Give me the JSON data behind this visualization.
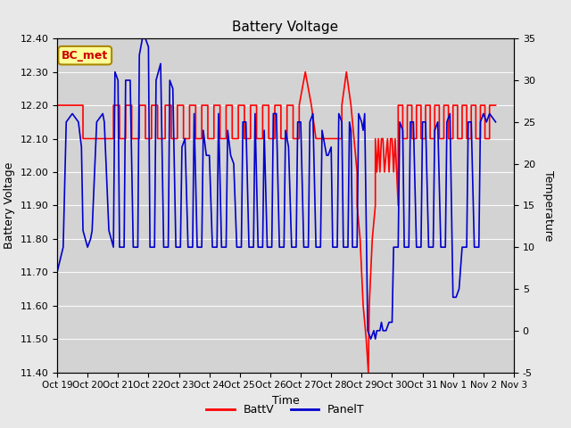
{
  "title": "Battery Voltage",
  "xlabel": "Time",
  "ylabel_left": "Battery Voltage",
  "ylabel_right": "Temperature",
  "ylim_left": [
    11.4,
    12.4
  ],
  "ylim_right": [
    -5,
    35
  ],
  "yticks_left": [
    11.4,
    11.5,
    11.6,
    11.7,
    11.8,
    11.9,
    12.0,
    12.1,
    12.2,
    12.3,
    12.4
  ],
  "yticks_right": [
    -5,
    0,
    5,
    10,
    15,
    20,
    25,
    30,
    35
  ],
  "xtick_labels": [
    "Oct 19",
    "Oct 20",
    "Oct 21",
    "Oct 22",
    "Oct 23",
    "Oct 24",
    "Oct 25",
    "Oct 26",
    "Oct 27",
    "Oct 28",
    "Oct 29",
    "Oct 30",
    "Oct 31",
    "Nov 1",
    "Nov 2",
    "Nov 3"
  ],
  "fig_bg": "#e8e8e8",
  "plot_bg": "#d3d3d3",
  "batt_color": "#ff0000",
  "panel_color": "#0000cc",
  "grid_color": "#ffffff",
  "annotation_text": "BC_met",
  "annotation_fg": "#cc0000",
  "annotation_bg": "#ffff99",
  "annotation_border": "#aa8800",
  "legend_batt": "BattV",
  "legend_panel": "PanelT",
  "batt_data": [
    [
      0.0,
      12.2
    ],
    [
      0.85,
      12.2
    ],
    [
      0.85,
      12.1
    ],
    [
      1.85,
      12.1
    ],
    [
      1.85,
      12.2
    ],
    [
      2.05,
      12.2
    ],
    [
      2.05,
      12.1
    ],
    [
      2.25,
      12.1
    ],
    [
      2.25,
      12.2
    ],
    [
      2.45,
      12.2
    ],
    [
      2.45,
      12.1
    ],
    [
      2.7,
      12.1
    ],
    [
      2.7,
      12.2
    ],
    [
      2.9,
      12.2
    ],
    [
      2.9,
      12.1
    ],
    [
      3.1,
      12.1
    ],
    [
      3.1,
      12.2
    ],
    [
      3.3,
      12.2
    ],
    [
      3.3,
      12.1
    ],
    [
      3.55,
      12.1
    ],
    [
      3.55,
      12.2
    ],
    [
      3.75,
      12.2
    ],
    [
      3.75,
      12.1
    ],
    [
      3.95,
      12.1
    ],
    [
      3.95,
      12.2
    ],
    [
      4.15,
      12.2
    ],
    [
      4.15,
      12.1
    ],
    [
      4.35,
      12.1
    ],
    [
      4.35,
      12.2
    ],
    [
      4.55,
      12.2
    ],
    [
      4.55,
      12.1
    ],
    [
      4.75,
      12.1
    ],
    [
      4.75,
      12.2
    ],
    [
      4.95,
      12.2
    ],
    [
      4.95,
      12.1
    ],
    [
      5.15,
      12.1
    ],
    [
      5.15,
      12.2
    ],
    [
      5.35,
      12.2
    ],
    [
      5.35,
      12.1
    ],
    [
      5.55,
      12.1
    ],
    [
      5.55,
      12.2
    ],
    [
      5.75,
      12.2
    ],
    [
      5.75,
      12.1
    ],
    [
      5.95,
      12.1
    ],
    [
      5.95,
      12.2
    ],
    [
      6.15,
      12.2
    ],
    [
      6.15,
      12.1
    ],
    [
      6.35,
      12.1
    ],
    [
      6.35,
      12.2
    ],
    [
      6.55,
      12.2
    ],
    [
      6.55,
      12.1
    ],
    [
      6.75,
      12.1
    ],
    [
      6.75,
      12.2
    ],
    [
      6.95,
      12.2
    ],
    [
      6.95,
      12.1
    ],
    [
      7.15,
      12.1
    ],
    [
      7.15,
      12.2
    ],
    [
      7.35,
      12.2
    ],
    [
      7.35,
      12.1
    ],
    [
      7.55,
      12.1
    ],
    [
      7.55,
      12.2
    ],
    [
      7.75,
      12.2
    ],
    [
      7.75,
      12.1
    ],
    [
      7.95,
      12.1
    ],
    [
      7.95,
      12.2
    ],
    [
      8.15,
      12.3
    ],
    [
      8.35,
      12.2
    ],
    [
      8.5,
      12.1
    ],
    [
      8.9,
      12.1
    ],
    [
      8.9,
      12.1
    ],
    [
      9.35,
      12.1
    ],
    [
      9.35,
      12.2
    ],
    [
      9.5,
      12.3
    ],
    [
      9.65,
      12.2
    ],
    [
      9.75,
      12.1
    ],
    [
      9.85,
      12.0
    ],
    [
      9.85,
      11.9
    ],
    [
      9.95,
      11.8
    ],
    [
      10.05,
      11.6
    ],
    [
      10.15,
      11.5
    ],
    [
      10.22,
      11.4
    ],
    [
      10.25,
      11.6
    ],
    [
      10.35,
      11.8
    ],
    [
      10.45,
      11.9
    ],
    [
      10.45,
      12.1
    ],
    [
      10.5,
      12.0
    ],
    [
      10.55,
      12.1
    ],
    [
      10.6,
      12.0
    ],
    [
      10.65,
      12.1
    ],
    [
      10.7,
      12.1
    ],
    [
      10.75,
      12.0
    ],
    [
      10.85,
      12.1
    ],
    [
      10.85,
      12.1
    ],
    [
      10.9,
      12.0
    ],
    [
      10.95,
      12.1
    ],
    [
      11.0,
      12.1
    ],
    [
      11.05,
      12.0
    ],
    [
      11.1,
      12.1
    ],
    [
      11.1,
      12.1
    ],
    [
      11.15,
      12.0
    ],
    [
      11.2,
      11.9
    ],
    [
      11.2,
      12.2
    ],
    [
      11.35,
      12.2
    ],
    [
      11.35,
      12.1
    ],
    [
      11.5,
      12.1
    ],
    [
      11.5,
      12.2
    ],
    [
      11.65,
      12.2
    ],
    [
      11.65,
      12.1
    ],
    [
      11.8,
      12.1
    ],
    [
      11.8,
      12.2
    ],
    [
      11.95,
      12.2
    ],
    [
      11.95,
      12.1
    ],
    [
      12.1,
      12.1
    ],
    [
      12.1,
      12.2
    ],
    [
      12.25,
      12.2
    ],
    [
      12.25,
      12.1
    ],
    [
      12.4,
      12.1
    ],
    [
      12.4,
      12.2
    ],
    [
      12.55,
      12.2
    ],
    [
      12.55,
      12.1
    ],
    [
      12.7,
      12.1
    ],
    [
      12.7,
      12.2
    ],
    [
      12.85,
      12.2
    ],
    [
      12.85,
      12.1
    ],
    [
      13.0,
      12.1
    ],
    [
      13.0,
      12.2
    ],
    [
      13.15,
      12.2
    ],
    [
      13.15,
      12.1
    ],
    [
      13.3,
      12.1
    ],
    [
      13.3,
      12.2
    ],
    [
      13.45,
      12.2
    ],
    [
      13.45,
      12.1
    ],
    [
      13.6,
      12.1
    ],
    [
      13.6,
      12.2
    ],
    [
      13.75,
      12.2
    ],
    [
      13.75,
      12.1
    ],
    [
      13.9,
      12.1
    ],
    [
      13.9,
      12.2
    ],
    [
      14.05,
      12.2
    ],
    [
      14.05,
      12.1
    ],
    [
      14.2,
      12.1
    ],
    [
      14.2,
      12.2
    ],
    [
      14.4,
      12.2
    ]
  ],
  "panel_data": [
    [
      0.0,
      7
    ],
    [
      0.2,
      10
    ],
    [
      0.3,
      25
    ],
    [
      0.5,
      26
    ],
    [
      0.7,
      25
    ],
    [
      0.8,
      22
    ],
    [
      0.85,
      12
    ],
    [
      1.0,
      10
    ],
    [
      1.1,
      11
    ],
    [
      1.15,
      12
    ],
    [
      1.3,
      25
    ],
    [
      1.5,
      26
    ],
    [
      1.55,
      25
    ],
    [
      1.7,
      12
    ],
    [
      1.85,
      10
    ],
    [
      1.9,
      31
    ],
    [
      2.0,
      30
    ],
    [
      2.05,
      10
    ],
    [
      2.2,
      10
    ],
    [
      2.25,
      30
    ],
    [
      2.4,
      30
    ],
    [
      2.5,
      10
    ],
    [
      2.65,
      10
    ],
    [
      2.7,
      33
    ],
    [
      2.8,
      35
    ],
    [
      2.9,
      35
    ],
    [
      3.0,
      34
    ],
    [
      3.05,
      10
    ],
    [
      3.2,
      10
    ],
    [
      3.25,
      30
    ],
    [
      3.4,
      32
    ],
    [
      3.5,
      10
    ],
    [
      3.65,
      10
    ],
    [
      3.7,
      30
    ],
    [
      3.8,
      29
    ],
    [
      3.9,
      10
    ],
    [
      4.05,
      10
    ],
    [
      4.1,
      22
    ],
    [
      4.2,
      23
    ],
    [
      4.3,
      10
    ],
    [
      4.45,
      10
    ],
    [
      4.5,
      26
    ],
    [
      4.6,
      10
    ],
    [
      4.75,
      10
    ],
    [
      4.8,
      24
    ],
    [
      4.9,
      21
    ],
    [
      5.0,
      21
    ],
    [
      5.1,
      10
    ],
    [
      5.25,
      10
    ],
    [
      5.3,
      26
    ],
    [
      5.4,
      10
    ],
    [
      5.55,
      10
    ],
    [
      5.6,
      24
    ],
    [
      5.7,
      21
    ],
    [
      5.8,
      20
    ],
    [
      5.9,
      10
    ],
    [
      6.05,
      10
    ],
    [
      6.1,
      25
    ],
    [
      6.2,
      25
    ],
    [
      6.3,
      10
    ],
    [
      6.45,
      10
    ],
    [
      6.5,
      26
    ],
    [
      6.6,
      10
    ],
    [
      6.75,
      10
    ],
    [
      6.8,
      24
    ],
    [
      6.9,
      10
    ],
    [
      7.05,
      10
    ],
    [
      7.1,
      26
    ],
    [
      7.2,
      26
    ],
    [
      7.3,
      10
    ],
    [
      7.45,
      10
    ],
    [
      7.5,
      24
    ],
    [
      7.6,
      22
    ],
    [
      7.7,
      10
    ],
    [
      7.85,
      10
    ],
    [
      7.9,
      25
    ],
    [
      8.0,
      25
    ],
    [
      8.1,
      10
    ],
    [
      8.25,
      10
    ],
    [
      8.3,
      25
    ],
    [
      8.4,
      26
    ],
    [
      8.5,
      10
    ],
    [
      8.65,
      10
    ],
    [
      8.7,
      24
    ],
    [
      8.8,
      22
    ],
    [
      8.85,
      21
    ],
    [
      8.9,
      21
    ],
    [
      9.0,
      22
    ],
    [
      9.05,
      10
    ],
    [
      9.2,
      10
    ],
    [
      9.25,
      26
    ],
    [
      9.35,
      25
    ],
    [
      9.4,
      10
    ],
    [
      9.55,
      10
    ],
    [
      9.6,
      25
    ],
    [
      9.65,
      24
    ],
    [
      9.7,
      10
    ],
    [
      9.85,
      10
    ],
    [
      9.9,
      26
    ],
    [
      10.0,
      25
    ],
    [
      10.05,
      24
    ],
    [
      10.1,
      26
    ],
    [
      10.2,
      0
    ],
    [
      10.3,
      -1
    ],
    [
      10.4,
      0
    ],
    [
      10.45,
      -1
    ],
    [
      10.5,
      0
    ],
    [
      10.55,
      0
    ],
    [
      10.6,
      0
    ],
    [
      10.65,
      1
    ],
    [
      10.7,
      0
    ],
    [
      10.8,
      0
    ],
    [
      10.9,
      1
    ],
    [
      11.0,
      1
    ],
    [
      11.05,
      10
    ],
    [
      11.2,
      10
    ],
    [
      11.25,
      25
    ],
    [
      11.35,
      24
    ],
    [
      11.4,
      10
    ],
    [
      11.55,
      10
    ],
    [
      11.6,
      25
    ],
    [
      11.7,
      25
    ],
    [
      11.8,
      10
    ],
    [
      11.95,
      10
    ],
    [
      12.0,
      25
    ],
    [
      12.1,
      25
    ],
    [
      12.2,
      10
    ],
    [
      12.35,
      10
    ],
    [
      12.4,
      24
    ],
    [
      12.5,
      25
    ],
    [
      12.6,
      10
    ],
    [
      12.75,
      10
    ],
    [
      12.8,
      25
    ],
    [
      12.9,
      26
    ],
    [
      13.0,
      4
    ],
    [
      13.1,
      4
    ],
    [
      13.2,
      5
    ],
    [
      13.3,
      10
    ],
    [
      13.45,
      10
    ],
    [
      13.5,
      25
    ],
    [
      13.6,
      25
    ],
    [
      13.7,
      10
    ],
    [
      13.85,
      10
    ],
    [
      13.9,
      25
    ],
    [
      14.0,
      26
    ],
    [
      14.1,
      25
    ],
    [
      14.2,
      26
    ],
    [
      14.4,
      25
    ]
  ]
}
